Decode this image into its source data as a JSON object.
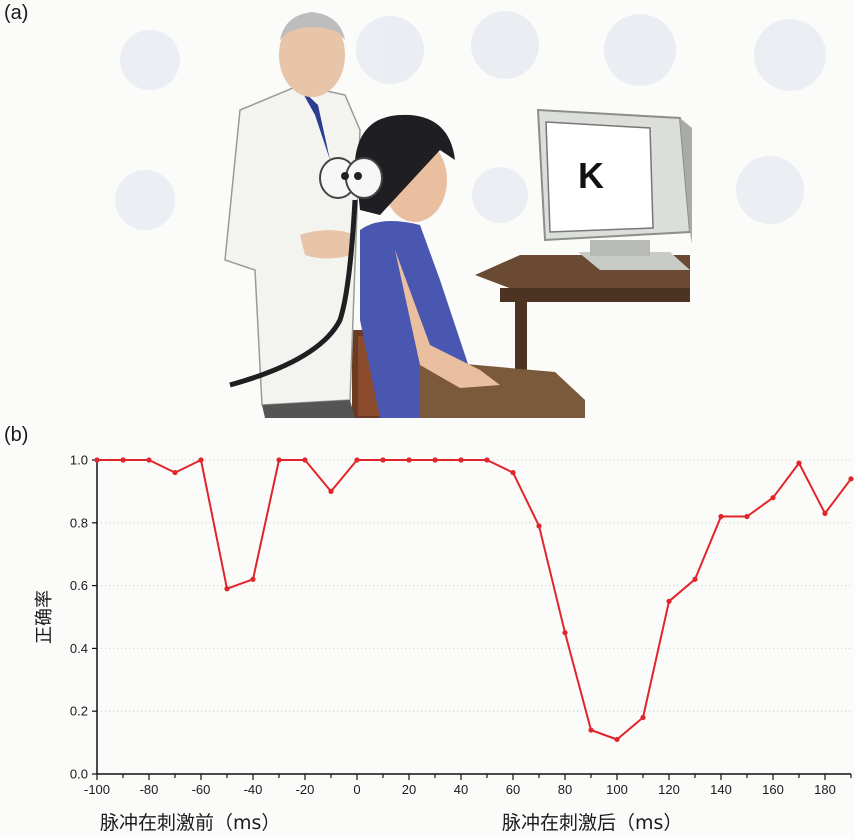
{
  "panel_a": {
    "label": "(a)",
    "screen_letter": "K"
  },
  "panel_b": {
    "label": "(b)"
  },
  "chart_data": {
    "type": "line",
    "ylabel": "正确率",
    "xlabel_left": "脉冲在刺激前（ms）",
    "xlabel_right": "脉冲在刺激后（ms）",
    "xlim": [
      -100,
      190
    ],
    "ylim": [
      0,
      1.0
    ],
    "xticks": [
      -100,
      -80,
      -60,
      -40,
      -20,
      0,
      20,
      40,
      60,
      80,
      100,
      120,
      140,
      160,
      180
    ],
    "xtick_labels": [
      "-100",
      "-80",
      "-60",
      "-40",
      "-20",
      "0",
      "20",
      "40",
      "60",
      "80",
      "100",
      "120",
      "140",
      "160",
      "180"
    ],
    "yticks": [
      0,
      0.2,
      0.4,
      0.6,
      0.8,
      1.0
    ],
    "ytick_labels": [
      "0.0",
      "0.2",
      "0.4",
      "0.6",
      "0.8",
      "1.0"
    ],
    "grid": true,
    "colors": {
      "line": "#e0252b"
    },
    "series": [
      {
        "x": [
          -100,
          -90,
          -80,
          -70,
          -60,
          -50,
          -40,
          -30,
          -20,
          -10,
          0,
          10,
          20,
          30,
          40,
          50,
          60,
          70,
          80,
          90,
          100,
          110,
          120,
          130,
          140,
          150,
          160,
          170,
          180,
          190
        ],
        "values": [
          1.0,
          1.0,
          1.0,
          0.96,
          1.0,
          0.59,
          0.62,
          1.0,
          1.0,
          0.9,
          1.0,
          1.0,
          1.0,
          1.0,
          1.0,
          1.0,
          0.96,
          0.79,
          0.45,
          0.14,
          0.11,
          0.18,
          0.55,
          0.62,
          0.82,
          0.82,
          0.88,
          0.99,
          0.83,
          0.94
        ]
      }
    ]
  }
}
